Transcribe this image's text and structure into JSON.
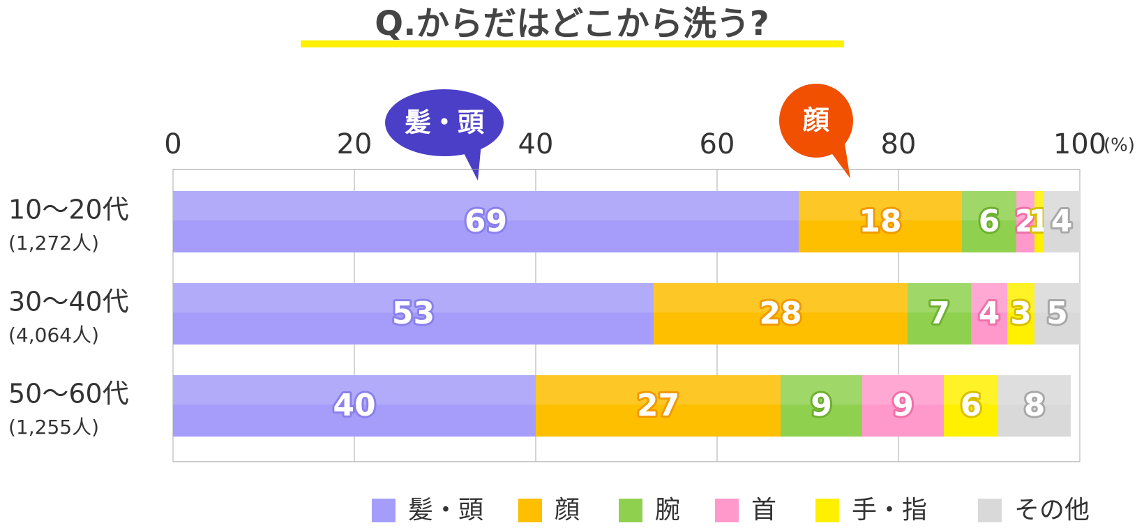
{
  "chart_data": {
    "type": "stacked_barh",
    "title": "Q.からだはどこから洗う?",
    "x_unit": "(%)",
    "categories": [
      "10〜20代",
      "30〜40代",
      "50〜60代"
    ],
    "category_counts": [
      "(1,272人)",
      "(4,064人)",
      "(1,255人)"
    ],
    "series": [
      {
        "name": "髪・頭",
        "color": "#a59df9",
        "outline": "#8a80ec",
        "values": [
          69,
          53,
          40
        ]
      },
      {
        "name": "顔",
        "color": "#fdbf00",
        "outline": "#f09a00",
        "values": [
          18,
          28,
          27
        ]
      },
      {
        "name": "腕",
        "color": "#8fd14f",
        "outline": "#6eb030",
        "values": [
          6,
          7,
          9
        ]
      },
      {
        "name": "首",
        "color": "#ff99cc",
        "outline": "#f070a8",
        "values": [
          2,
          4,
          9
        ]
      },
      {
        "name": "手・指",
        "color": "#fff000",
        "outline": "#d8c000",
        "values": [
          1,
          3,
          6
        ]
      },
      {
        "name": "その他",
        "color": "#d9d9d9",
        "outline": "#a8a8a8",
        "values": [
          4,
          5,
          8
        ]
      }
    ],
    "xlim": [
      0,
      100
    ],
    "xticks": [
      0,
      20,
      40,
      60,
      80,
      100
    ],
    "grid": true,
    "annotations": [
      {
        "text": "髪・頭",
        "color": "#4b3fc7"
      },
      {
        "text": "顔",
        "color": "#f05000"
      }
    ]
  }
}
